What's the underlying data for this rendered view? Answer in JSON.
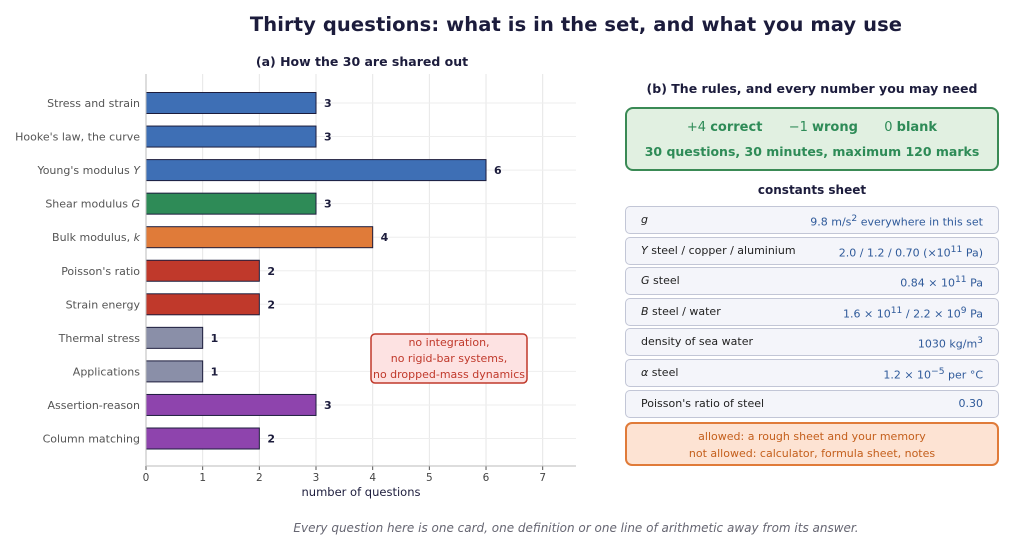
{
  "title": "Thirty questions: what is in the set, and what you may use",
  "footer": "Every question here is one card, one definition or one line of arithmetic away from its answer.",
  "chart_data": {
    "type": "bar",
    "orientation": "horizontal",
    "title": "(a) How the 30 are shared out",
    "xlabel": "number of questions",
    "xlim": [
      0,
      7.6
    ],
    "xticks": [
      0,
      1,
      2,
      3,
      4,
      5,
      6,
      7
    ],
    "grid": true,
    "categories": [
      "Stress and strain",
      "Hooke's law, the curve",
      "Young's modulus Y",
      "Shear modulus G",
      "Bulk modulus, k",
      "Poisson's ratio",
      "Strain energy",
      "Thermal stress",
      "Applications",
      "Assertion-reason",
      "Column matching"
    ],
    "values": [
      3,
      3,
      6,
      3,
      4,
      2,
      2,
      1,
      1,
      3,
      2
    ],
    "colors": [
      "#3e6fb5",
      "#3e6fb5",
      "#3e6fb5",
      "#2e8b57",
      "#e07b39",
      "#c0392b",
      "#c0392b",
      "#8a8fa8",
      "#8a8fa8",
      "#8e44ad",
      "#8e44ad"
    ],
    "annotation": [
      "no integration,",
      "no rigid-bar systems,",
      "no dropped-mass dynamics"
    ]
  },
  "panel_b": {
    "title": "(b) The rules, and every number you may need",
    "scoring": {
      "correct_points": "+4",
      "correct_label": "correct",
      "wrong_points": "−1",
      "wrong_label": "wrong",
      "blank_points": "0",
      "blank_label": "blank",
      "summary": "30 questions, 30 minutes, maximum 120 marks"
    },
    "constants_heading": "constants sheet",
    "constants": [
      {
        "label": "<i>g</i>",
        "value": "9.8 m/s<sup>2</sup> everywhere in this set"
      },
      {
        "label": "<i>Y</i> steel / copper / aluminium",
        "value": "2.0 / 1.2 / 0.70 (×10<sup>11</sup> Pa)"
      },
      {
        "label": "<i>G</i> steel",
        "value": "0.84 × 10<sup>11</sup> Pa"
      },
      {
        "label": "<i>B</i> steel / water",
        "value": "1.6 × 10<sup>11</sup> / 2.2 × 10<sup>9</sup> Pa"
      },
      {
        "label": "density of sea water",
        "value": "1030 kg/m<sup>3</sup>"
      },
      {
        "label": "<i>α</i> steel",
        "value": "1.2 × 10<sup>−5</sup> per °C"
      },
      {
        "label": "Poisson's ratio of steel",
        "value": "0.30"
      }
    ],
    "allowed": "allowed: a rough sheet and your memory",
    "not_allowed": "not allowed: calculator, formula sheet, notes"
  }
}
